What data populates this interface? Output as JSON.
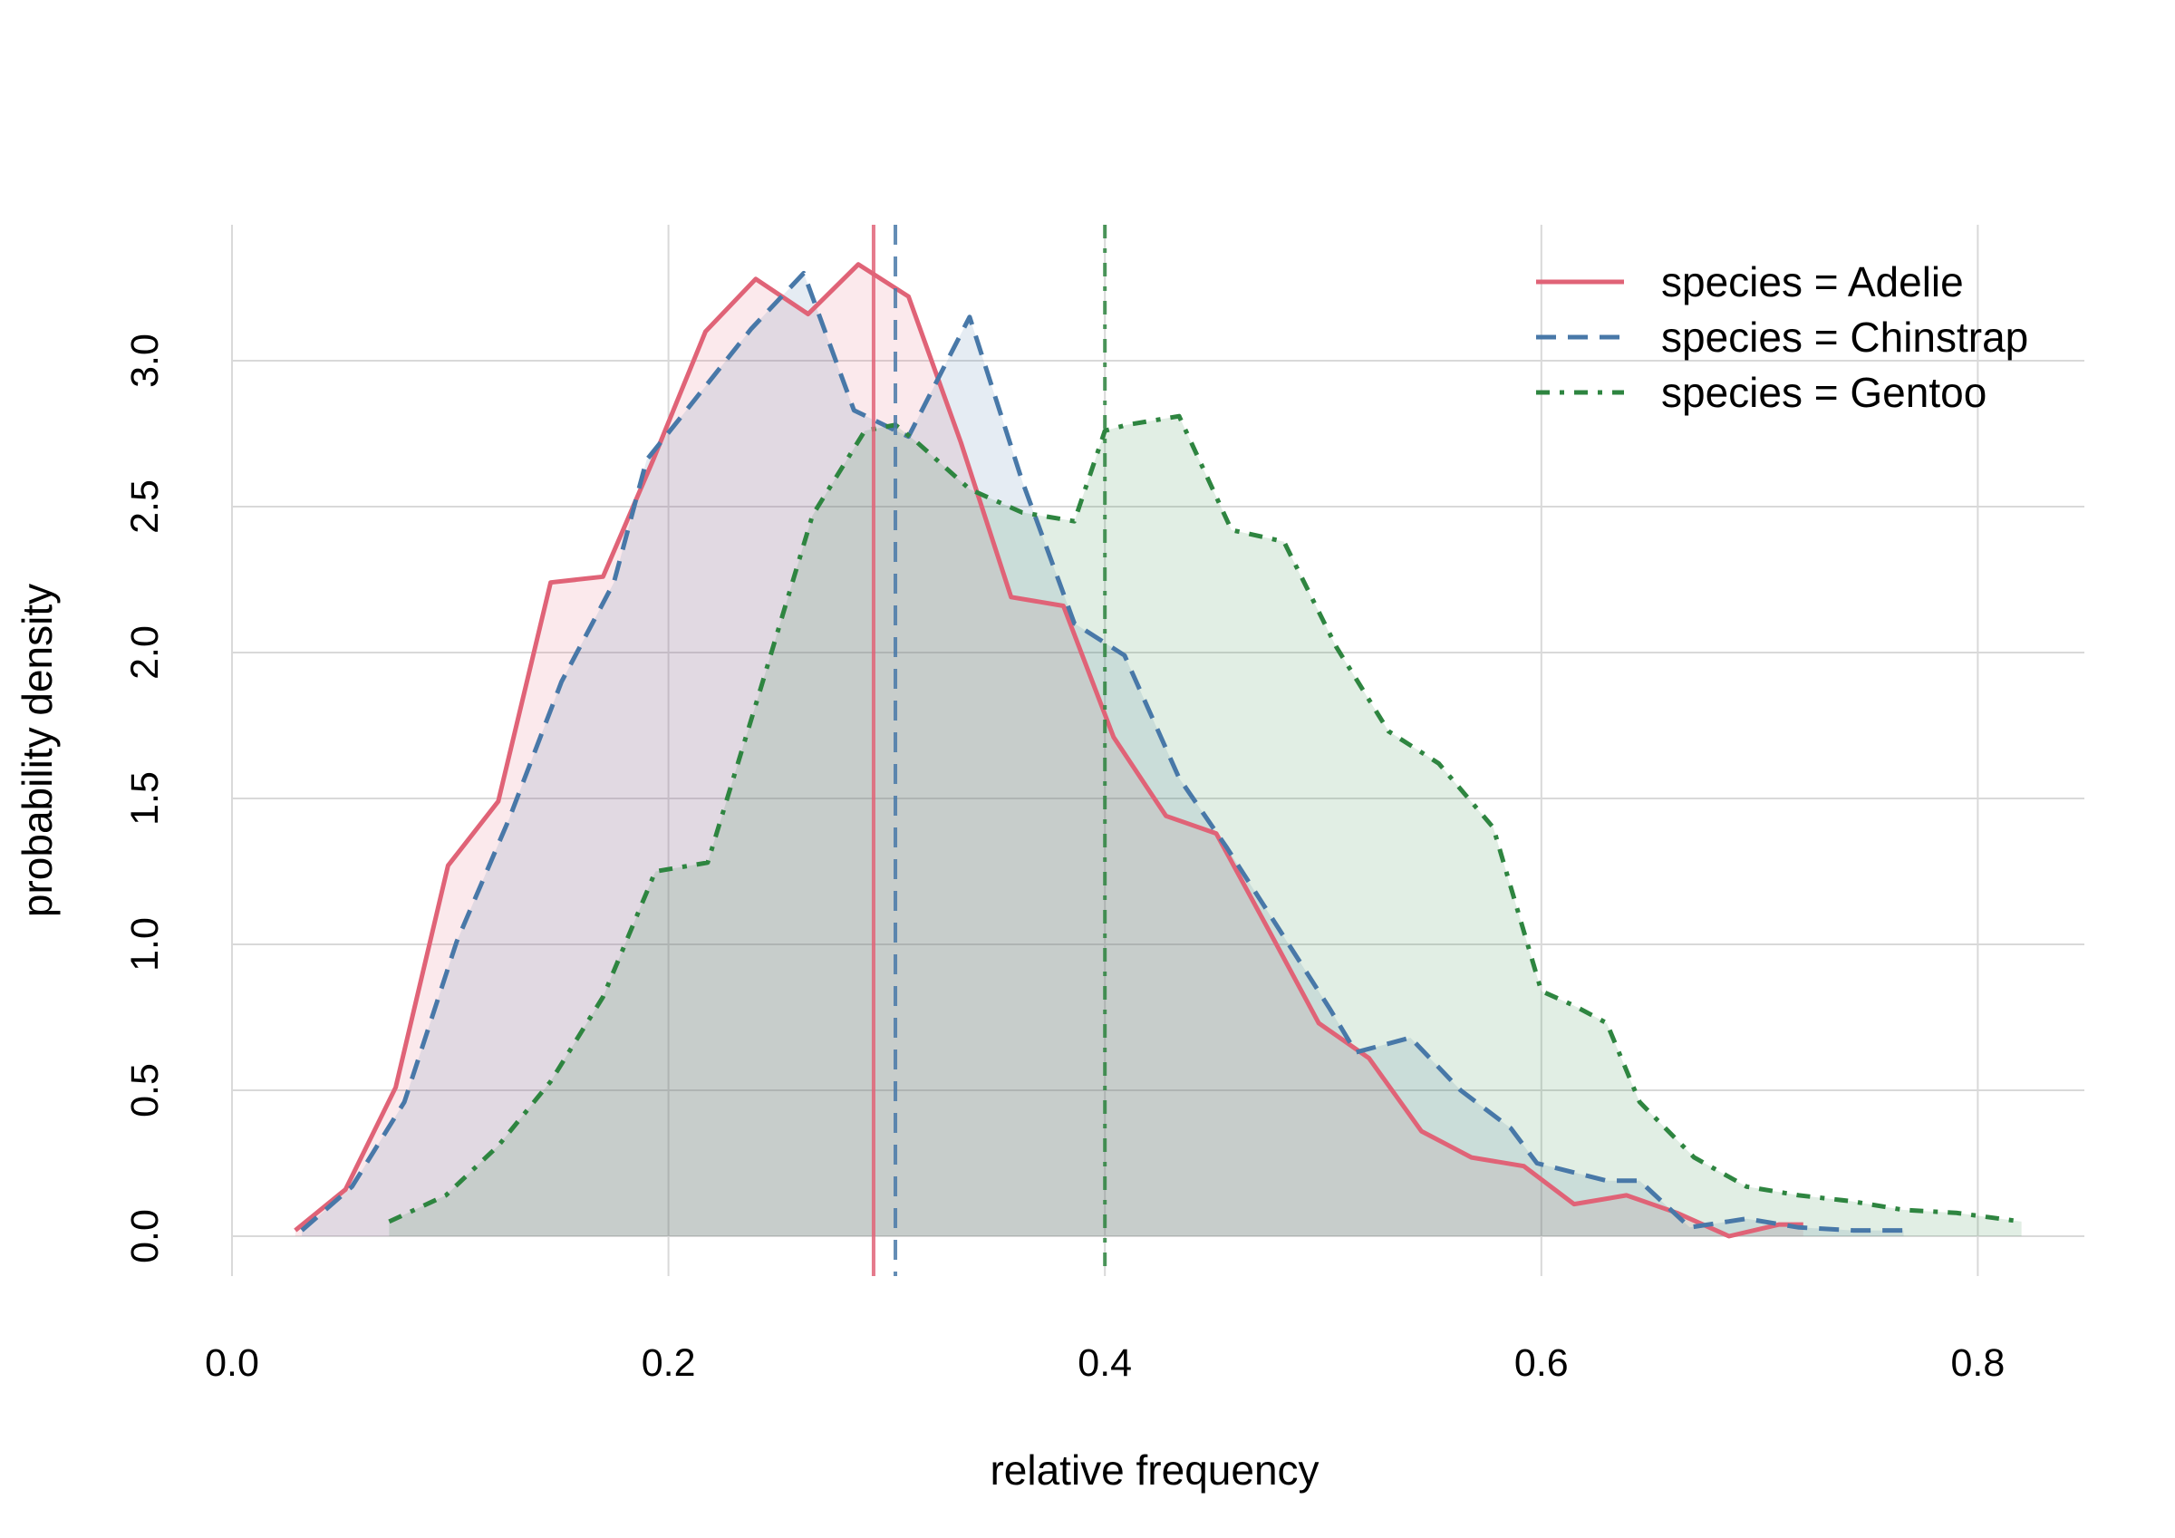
{
  "chart_data": {
    "type": "area",
    "xlabel": "relative frequency",
    "ylabel": "probability density",
    "xlim": [
      0.0,
      0.85
    ],
    "ylim": [
      0.0,
      3.35
    ],
    "x_ticks": [
      "0.0",
      "0.2",
      "0.4",
      "0.6",
      "0.8"
    ],
    "y_ticks": [
      "0.0",
      "0.5",
      "1.0",
      "1.5",
      "2.0",
      "2.5",
      "3.0"
    ],
    "grid": true,
    "legend_position": "top-right",
    "series": [
      {
        "name": "species = Adelie",
        "color": "#e06377",
        "line_style": "solid",
        "mean": 0.294,
        "x": [
          0.029,
          0.052,
          0.075,
          0.099,
          0.122,
          0.146,
          0.17,
          0.193,
          0.217,
          0.24,
          0.264,
          0.287,
          0.31,
          0.334,
          0.357,
          0.381,
          0.404,
          0.428,
          0.451,
          0.475,
          0.498,
          0.521,
          0.545,
          0.568,
          0.592,
          0.615,
          0.639,
          0.662,
          0.686,
          0.709,
          0.72
        ],
        "y": [
          0.02,
          0.16,
          0.51,
          1.27,
          1.49,
          2.24,
          2.26,
          2.66,
          3.1,
          3.28,
          3.16,
          3.33,
          3.22,
          2.72,
          2.19,
          2.16,
          1.71,
          1.44,
          1.38,
          1.05,
          0.73,
          0.61,
          0.36,
          0.27,
          0.24,
          0.11,
          0.14,
          0.08,
          0.0,
          0.04,
          0.04
        ]
      },
      {
        "name": "species = Chinstrap",
        "color": "#4878a8",
        "line_style": "dashed",
        "mean": 0.304,
        "x": [
          0.032,
          0.055,
          0.079,
          0.103,
          0.127,
          0.151,
          0.175,
          0.19,
          0.205,
          0.238,
          0.262,
          0.285,
          0.307,
          0.31,
          0.338,
          0.362,
          0.386,
          0.409,
          0.434,
          0.456,
          0.48,
          0.503,
          0.515,
          0.54,
          0.563,
          0.586,
          0.598,
          0.63,
          0.645,
          0.668,
          0.694,
          0.718,
          0.743,
          0.766
        ],
        "y": [
          0.02,
          0.17,
          0.46,
          1.01,
          1.43,
          1.9,
          2.24,
          2.66,
          2.8,
          3.11,
          3.3,
          2.83,
          2.75,
          2.74,
          3.15,
          2.59,
          2.1,
          1.99,
          1.57,
          1.33,
          1.05,
          0.78,
          0.63,
          0.68,
          0.5,
          0.37,
          0.25,
          0.19,
          0.19,
          0.03,
          0.06,
          0.03,
          0.02,
          0.02
        ]
      },
      {
        "name": "species = Gentoo",
        "color": "#2e8540",
        "line_style": "dashdot",
        "mean": 0.4,
        "x": [
          0.072,
          0.098,
          0.122,
          0.146,
          0.17,
          0.194,
          0.218,
          0.242,
          0.266,
          0.29,
          0.304,
          0.314,
          0.338,
          0.362,
          0.386,
          0.4,
          0.41,
          0.434,
          0.458,
          0.482,
          0.506,
          0.53,
          0.553,
          0.578,
          0.6,
          0.615,
          0.63,
          0.645,
          0.67,
          0.694,
          0.718,
          0.742,
          0.766,
          0.79,
          0.82
        ],
        "y": [
          0.05,
          0.14,
          0.31,
          0.53,
          0.82,
          1.25,
          1.28,
          1.87,
          2.47,
          2.76,
          2.78,
          2.72,
          2.56,
          2.48,
          2.45,
          2.76,
          2.78,
          2.81,
          2.42,
          2.38,
          2.02,
          1.73,
          1.62,
          1.4,
          0.84,
          0.79,
          0.73,
          0.46,
          0.27,
          0.17,
          0.14,
          0.12,
          0.09,
          0.08,
          0.05
        ]
      }
    ]
  }
}
